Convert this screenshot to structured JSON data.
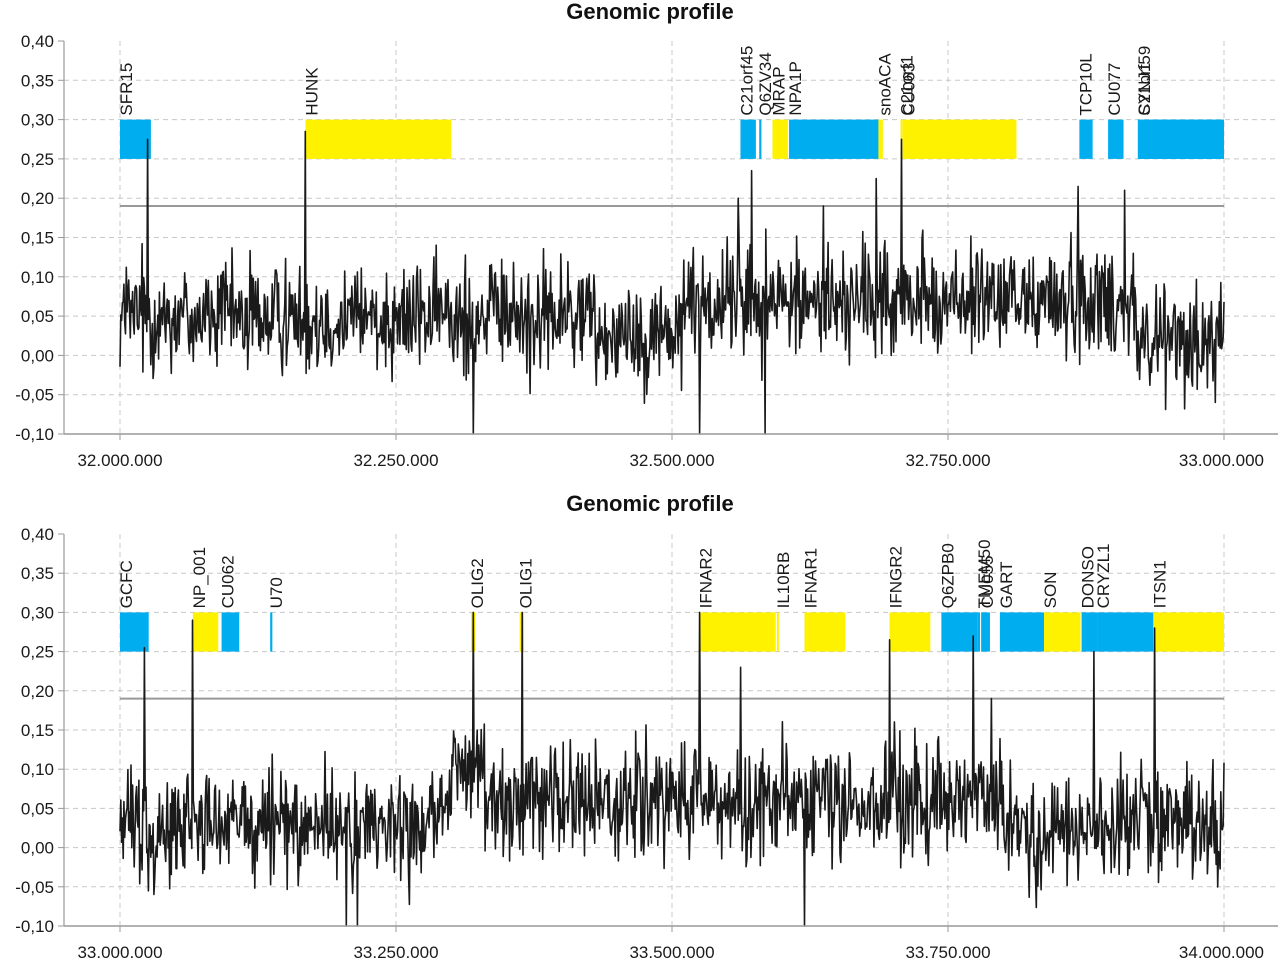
{
  "colors": {
    "blue": "#00aeef",
    "yellow": "#fff200",
    "signal": "#1a1a1a",
    "threshold": "#999999",
    "grid": "#c8c8c8",
    "axis": "#999999"
  },
  "chart_data": [
    {
      "type": "line",
      "title": "Genomic profile",
      "xlim": [
        32000000,
        33000000
      ],
      "ylim": [
        -0.1,
        0.4
      ],
      "x_ticks": [
        "32.000.000",
        "32.250.000",
        "32.500.000",
        "32.750.000",
        "33.000.000"
      ],
      "x_tick_values": [
        32000000,
        32250000,
        32500000,
        32750000,
        33000000
      ],
      "y_ticks": [
        "0,40",
        "0,35",
        "0,30",
        "0,25",
        "0,20",
        "0,15",
        "0,10",
        "0,05",
        "0,00",
        "-0,05",
        "-0,10"
      ],
      "y_tick_values": [
        0.4,
        0.35,
        0.3,
        0.25,
        0.2,
        0.15,
        0.1,
        0.05,
        0.0,
        -0.05,
        -0.1
      ],
      "grid": true,
      "threshold": 0.19,
      "signal": {
        "baseline": 0.05,
        "segments": [
          [
            32000000,
            32430000,
            0.05
          ],
          [
            32430000,
            32510000,
            0.03
          ],
          [
            32510000,
            32920000,
            0.07
          ],
          [
            32920000,
            33000000,
            0.02
          ]
        ],
        "peaks": [
          [
            32025000,
            0.275
          ],
          [
            32168000,
            0.285
          ],
          [
            32560000,
            0.2
          ],
          [
            32572000,
            0.235
          ],
          [
            32637000,
            0.19
          ],
          [
            32685000,
            0.225
          ],
          [
            32708000,
            0.275
          ],
          [
            32868000,
            0.215
          ],
          [
            32910000,
            0.21
          ]
        ],
        "dips": [
          [
            32320000,
            -0.13
          ],
          [
            32525000,
            -0.11
          ],
          [
            32584000,
            -0.12
          ]
        ]
      },
      "genes": [
        {
          "label": "SFR15",
          "start": 32000000,
          "end": 32028000,
          "color": "blue"
        },
        {
          "label": "HUNK",
          "start": 32168000,
          "end": 32300000,
          "color": "yellow"
        },
        {
          "label": "C21orf45",
          "start": 32562000,
          "end": 32576000,
          "color": "blue"
        },
        {
          "label": "Q6ZV34",
          "start": 32579000,
          "end": 32581000,
          "color": "blue"
        },
        {
          "label": "MRAP",
          "start": 32591000,
          "end": 32605000,
          "color": "yellow"
        },
        {
          "label": "NPA1P",
          "start": 32606000,
          "end": 32687000,
          "color": "blue"
        },
        {
          "label": "snoACA",
          "start": 32687000,
          "end": 32691000,
          "color": "yellow"
        },
        {
          "label": "C21orf1",
          "start": 32707000,
          "end": 32708000,
          "color": "yellow"
        },
        {
          "label": "CU063",
          "start": 32709000,
          "end": 32812000,
          "color": "yellow"
        },
        {
          "label": "TCP10L",
          "start": 32869000,
          "end": 32881000,
          "color": "blue"
        },
        {
          "label": "CU077",
          "start": 32895000,
          "end": 32909000,
          "color": "blue"
        },
        {
          "label": "C21orf59",
          "start": 32922000,
          "end": 33000000,
          "color": "blue"
        },
        {
          "label": "SYNJ1",
          "start": 32922000,
          "end": 33000000,
          "color": "blue"
        }
      ]
    },
    {
      "type": "line",
      "title": "Genomic profile",
      "xlim": [
        33000000,
        34000000
      ],
      "ylim": [
        -0.1,
        0.4
      ],
      "x_ticks": [
        "33.000.000",
        "33.250.000",
        "33.500.000",
        "33.750.000",
        "34.000.000"
      ],
      "x_tick_values": [
        33000000,
        33250000,
        33500000,
        33750000,
        34000000
      ],
      "y_ticks": [
        "0,40",
        "0,35",
        "0,30",
        "0,25",
        "0,20",
        "0,15",
        "0,10",
        "0,05",
        "0,00",
        "-0,05",
        "-0,10"
      ],
      "y_tick_values": [
        0.4,
        0.35,
        0.3,
        0.25,
        0.2,
        0.15,
        0.1,
        0.05,
        0.0,
        -0.05,
        -0.1
      ],
      "grid": true,
      "threshold": 0.19,
      "signal": {
        "baseline": 0.04,
        "segments": [
          [
            33000000,
            33300000,
            0.03
          ],
          [
            33300000,
            33330000,
            0.1
          ],
          [
            33330000,
            33680000,
            0.06
          ],
          [
            33680000,
            33800000,
            0.06
          ],
          [
            33800000,
            33920000,
            0.02
          ],
          [
            33920000,
            34000000,
            0.03
          ]
        ],
        "peaks": [
          [
            33022000,
            0.255
          ],
          [
            33066000,
            0.29
          ],
          [
            33320000,
            0.3
          ],
          [
            33364000,
            0.3
          ],
          [
            33525000,
            0.3
          ],
          [
            33562000,
            0.23
          ],
          [
            33620000,
            0.21
          ],
          [
            33697000,
            0.265
          ],
          [
            33773000,
            0.27
          ],
          [
            33789000,
            0.19
          ],
          [
            33882000,
            0.25
          ],
          [
            33937000,
            0.28
          ]
        ],
        "dips": [
          [
            33205000,
            -0.12
          ],
          [
            33215000,
            -0.11
          ],
          [
            33620000,
            -0.11
          ]
        ]
      },
      "genes": [
        {
          "label": "GCFC",
          "start": 33000000,
          "end": 33026000,
          "color": "blue"
        },
        {
          "label": "NP_001",
          "start": 33066000,
          "end": 33089000,
          "color": "yellow"
        },
        {
          "label": "CU062",
          "start": 33092000,
          "end": 33108000,
          "color": "blue"
        },
        {
          "label": "U70",
          "start": 33136000,
          "end": 33138000,
          "color": "blue"
        },
        {
          "label": "OLIG2",
          "start": 33318000,
          "end": 33322000,
          "color": "yellow"
        },
        {
          "label": "OLIG1",
          "start": 33362000,
          "end": 33366000,
          "color": "yellow"
        },
        {
          "label": "IFNAR2",
          "start": 33525000,
          "end": 33594000,
          "color": "yellow"
        },
        {
          "label": "IL10RB",
          "start": 33595000,
          "end": 33596000,
          "color": "yellow"
        },
        {
          "label": "IFNAR1",
          "start": 33620000,
          "end": 33657000,
          "color": "yellow"
        },
        {
          "label": "IFNGR2",
          "start": 33697000,
          "end": 33734000,
          "color": "yellow"
        },
        {
          "label": "Q6ZPB0",
          "start": 33744000,
          "end": 33777000,
          "color": "blue"
        },
        {
          "label": "TMEM50",
          "start": 33777000,
          "end": 33779000,
          "color": "blue"
        },
        {
          "label": "CU055",
          "start": 33780000,
          "end": 33788000,
          "color": "blue"
        },
        {
          "label": "GART",
          "start": 33797000,
          "end": 33837000,
          "color": "blue"
        },
        {
          "label": "SON",
          "start": 33837000,
          "end": 33870000,
          "color": "yellow"
        },
        {
          "label": "DONSO",
          "start": 33871000,
          "end": 33885000,
          "color": "blue"
        },
        {
          "label": "CRYZL1",
          "start": 33885000,
          "end": 33936000,
          "color": "blue"
        },
        {
          "label": "ITSN1",
          "start": 33936000,
          "end": 34000000,
          "color": "yellow"
        }
      ]
    }
  ]
}
